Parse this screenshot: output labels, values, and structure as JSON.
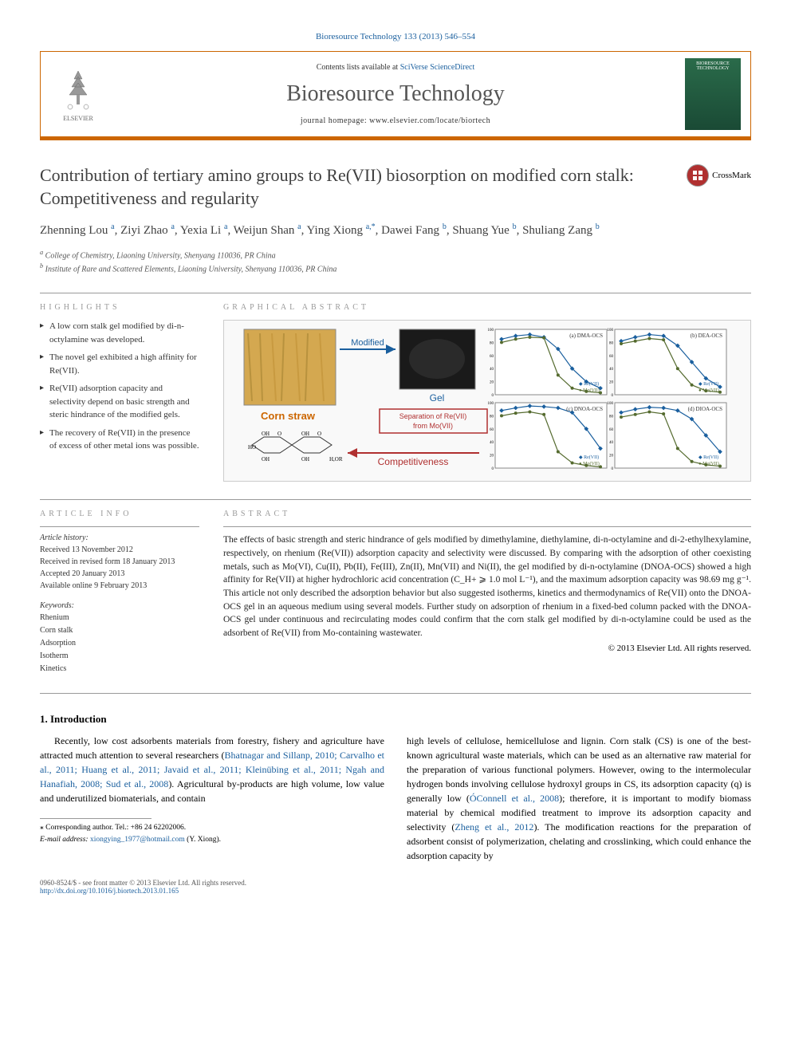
{
  "topLink": "Bioresource Technology 133 (2013) 546–554",
  "header": {
    "contentsPrefix": "Contents lists available at ",
    "contentsLink": "SciVerse ScienceDirect",
    "journalName": "Bioresource Technology",
    "homepage": "journal homepage: www.elsevier.com/locate/biortech",
    "publisherName": "ELSEVIER",
    "coverTitle": "BIORESOURCE TECHNOLOGY"
  },
  "colors": {
    "accent": "#cc6600",
    "link": "#1a5f9e",
    "headingGray": "#404040",
    "ruleGray": "#999999",
    "crossmarkRed": "#b03030"
  },
  "title": "Contribution of tertiary amino groups to Re(VII) biosorption on modified corn stalk: Competitiveness and regularity",
  "crossmark": "CrossMark",
  "authors": [
    {
      "name": "Zhenning Lou",
      "sup": "a"
    },
    {
      "name": "Ziyi Zhao",
      "sup": "a"
    },
    {
      "name": "Yexia Li",
      "sup": "a"
    },
    {
      "name": "Weijun Shan",
      "sup": "a"
    },
    {
      "name": "Ying Xiong",
      "sup": "a,*"
    },
    {
      "name": "Dawei Fang",
      "sup": "b"
    },
    {
      "name": "Shuang Yue",
      "sup": "b"
    },
    {
      "name": "Shuliang Zang",
      "sup": "b"
    }
  ],
  "affiliations": [
    {
      "sup": "a",
      "text": "College of Chemistry, Liaoning University, Shenyang 110036, PR China"
    },
    {
      "sup": "b",
      "text": "Institute of Rare and Scattered Elements, Liaoning University, Shenyang 110036, PR China"
    }
  ],
  "highlightsHeading": "HIGHLIGHTS",
  "highlights": [
    "A low corn stalk gel modified by di-n-octylamine was developed.",
    "The novel gel exhibited a high affinity for Re(VII).",
    "Re(VII) adsorption capacity and selectivity depend on basic strength and steric hindrance of the modified gels.",
    "The recovery of Re(VII) in the presence of excess of other metal ions was possible."
  ],
  "graphicalHeading": "GRAPHICAL ABSTRACT",
  "graphical": {
    "labels": {
      "cornStraw": "Corn straw",
      "modified": "Modified",
      "gel": "Gel",
      "separation": "Separation of Re(VII) from Mo(VII)",
      "competitiveness": "Competitiveness",
      "panelA": "(a) DMA-OCS",
      "panelB": "(b) DEA-OCS",
      "panelC": "(c) DNOA-OCS",
      "panelD": "(d) DIOA-OCS",
      "legendRe": "Re(VII)",
      "legendMo": "Mo(VII)"
    },
    "charts": {
      "type": "line-panels",
      "panels": 4,
      "ylabel": "A%",
      "ylim": [
        0,
        100
      ],
      "ytick_step": 20,
      "line_colors": {
        "Re": "#1a5f9e",
        "Mo": "#556b2f"
      },
      "marker": {
        "Re": "diamond",
        "Mo": "circle"
      },
      "background_color": "#ffffff",
      "grid_color": "#dddddd",
      "border_color": "#888888",
      "series": {
        "a": {
          "Re": [
            85,
            90,
            92,
            88,
            70,
            40,
            20,
            10
          ],
          "Mo": [
            80,
            85,
            88,
            87,
            30,
            10,
            5,
            3
          ]
        },
        "b": {
          "Re": [
            82,
            88,
            92,
            90,
            75,
            50,
            25,
            12
          ],
          "Mo": [
            78,
            82,
            86,
            84,
            40,
            15,
            6,
            4
          ]
        },
        "c": {
          "Re": [
            88,
            92,
            95,
            94,
            92,
            85,
            60,
            30
          ],
          "Mo": [
            80,
            84,
            86,
            82,
            25,
            8,
            4,
            2
          ]
        },
        "d": {
          "Re": [
            85,
            90,
            93,
            92,
            88,
            75,
            50,
            25
          ],
          "Mo": [
            78,
            82,
            86,
            83,
            30,
            10,
            5,
            3
          ]
        }
      }
    }
  },
  "articleInfoHeading": "ARTICLE INFO",
  "articleHistory": {
    "label": "Article history:",
    "lines": [
      "Received 13 November 2012",
      "Received in revised form 18 January 2013",
      "Accepted 20 January 2013",
      "Available online 9 February 2013"
    ]
  },
  "keywordsLabel": "Keywords:",
  "keywords": [
    "Rhenium",
    "Corn stalk",
    "Adsorption",
    "Isotherm",
    "Kinetics"
  ],
  "abstractHeading": "ABSTRACT",
  "abstract": "The effects of basic strength and steric hindrance of gels modified by dimethylamine, diethylamine, di-n-octylamine and di-2-ethylhexylamine, respectively, on rhenium (Re(VII)) adsorption capacity and selectivity were discussed. By comparing with the adsorption of other coexisting metals, such as Mo(VI), Cu(II), Pb(II), Fe(III), Zn(II), Mn(VII) and Ni(II), the gel modified by di-n-octylamine (DNOA-OCS) showed a high affinity for Re(VII) at higher hydrochloric acid concentration (C_H+ ⩾ 1.0 mol L⁻¹), and the maximum adsorption capacity was 98.69 mg g⁻¹. This article not only described the adsorption behavior but also suggested isotherms, kinetics and thermodynamics of Re(VII) onto the DNOA-OCS gel in an aqueous medium using several models. Further study on adsorption of rhenium in a fixed-bed column packed with the DNOA-OCS gel under continuous and recirculating modes could confirm that the corn stalk gel modified by di-n-octylamine could be used as the adsorbent of Re(VII) from Mo-containing wastewater.",
  "copyright": "© 2013 Elsevier Ltd. All rights reserved.",
  "introHeading": "1. Introduction",
  "bodyLeft": {
    "p1a": "Recently, low cost adsorbents materials from forestry, fishery and agriculture have attracted much attention to several researchers (",
    "p1link": "Bhatnagar and Sillanp, 2010; Carvalho et al., 2011; Huang et al., 2011; Javaid et al., 2011; Kleinübing et al., 2011; Ngah and Hanafiah, 2008; Sud et al., 2008",
    "p1b": "). Agricultural by-products are high volume, low value and underutilized biomaterials, and contain"
  },
  "bodyRight": {
    "p1a": "high levels of cellulose, hemicellulose and lignin. Corn stalk (CS) is one of the best-known agricultural waste materials, which can be used as an alternative raw material for the preparation of various functional polymers. However, owing to the intermolecular hydrogen bonds involving cellulose hydroxyl groups in CS, its adsorption capacity (q) is generally low (",
    "p1link1": "ÓConnell et al., 2008",
    "p1b": "); therefore, it is important to modify biomass material by chemical modified treatment to improve its adsorption capacity and selectivity (",
    "p1link2": "Zheng et al., 2012",
    "p1c": "). The modification reactions for the preparation of adsorbent consist of polymerization, chelating and crosslinking, which could enhance the adsorption capacity by"
  },
  "footnote": {
    "corr": "⁎ Corresponding author. Tel.: +86 24 62202006.",
    "emailLabel": "E-mail address: ",
    "email": "xiongying_1977@hotmail.com",
    "emailSuffix": " (Y. Xiong)."
  },
  "footer": {
    "line1": "0960-8524/$ - see front matter © 2013 Elsevier Ltd. All rights reserved.",
    "doi": "http://dx.doi.org/10.1016/j.biortech.2013.01.165"
  }
}
